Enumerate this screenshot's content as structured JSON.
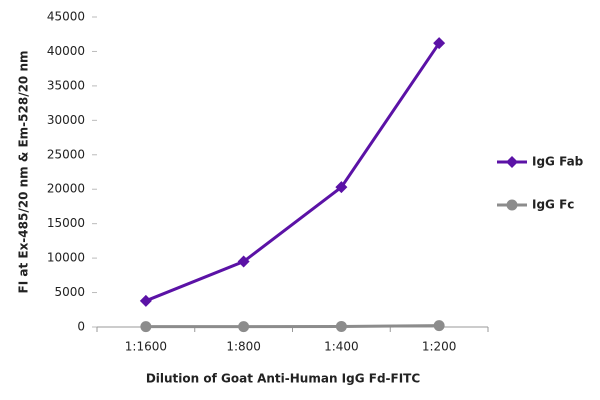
{
  "chart_data": {
    "type": "line",
    "x_label": "Dilution of Goat Anti-Human IgG Fd-FITC",
    "y_label": "FI at Ex-485/20 nm & Em-528/20 nm",
    "categories": [
      "1:1600",
      "1:800",
      "1:400",
      "1:200"
    ],
    "series": [
      {
        "name": "IgG Fab",
        "color": "#5b12a6",
        "marker": "diamond",
        "values": [
          3800,
          9500,
          20300,
          41200
        ]
      },
      {
        "name": "IgG Fc",
        "color": "#8c8c8c",
        "marker": "circle",
        "values": [
          50,
          50,
          80,
          200
        ]
      }
    ],
    "ylim": [
      0,
      45000
    ],
    "yticks": [
      0,
      5000,
      10000,
      15000,
      20000,
      25000,
      30000,
      35000,
      40000,
      45000
    ],
    "grid": false,
    "legend": "right"
  }
}
